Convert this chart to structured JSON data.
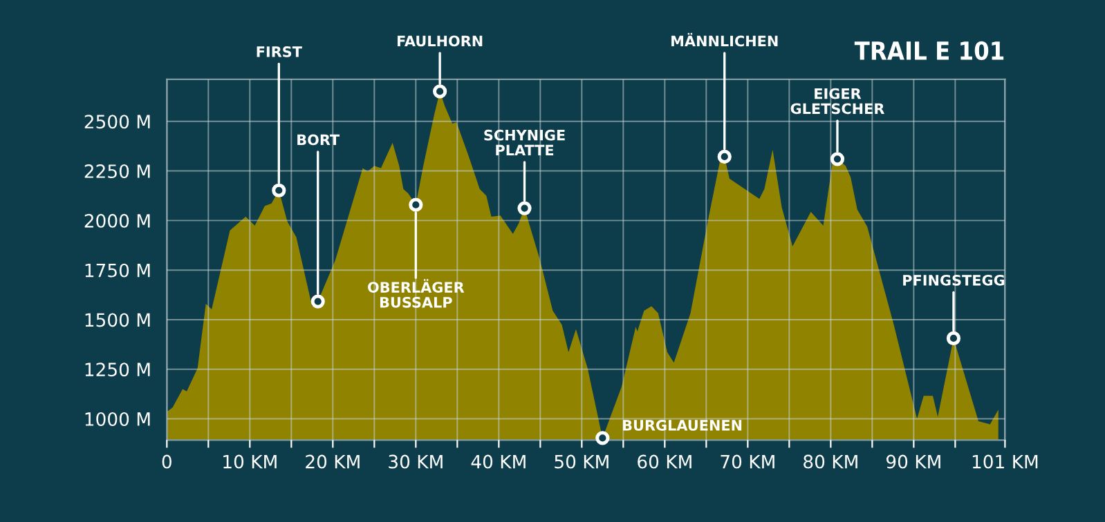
{
  "chart_data": {
    "type": "area",
    "title": "TRAIL E 101",
    "x": [
      0,
      0.7,
      1.9,
      2.4,
      3.7,
      4.7,
      5.4,
      7.6,
      9.5,
      10.6,
      11.8,
      12.6,
      13.5,
      14.5,
      15.6,
      17.5,
      18.2,
      20.3,
      23.6,
      24.2,
      25.0,
      25.8,
      27.2,
      28.0,
      28.5,
      29.1,
      30.0,
      30.9,
      32.2,
      32.9,
      33.5,
      34.4,
      34.9,
      36.3,
      37.7,
      38.5,
      39.1,
      40.2,
      41.7,
      42.4,
      43.1,
      44.9,
      46.5,
      47.6,
      48.4,
      49.3,
      50.7,
      52.5,
      54.8,
      56.5,
      56.7,
      57.5,
      58.4,
      59.2,
      60.3,
      61.1,
      63.1,
      65.3,
      66.7,
      67.2,
      67.8,
      71.4,
      72.0,
      73.0,
      74.1,
      75.4,
      77.6,
      79.1,
      80.2,
      80.8,
      81.8,
      82.4,
      83.2,
      84.4,
      87.6,
      90.4,
      91.2,
      92.3,
      92.9,
      94.8,
      97.8,
      99.2,
      100.2
    ],
    "series": [
      {
        "color": "#8f8300",
        "values": [
          1035,
          1058,
          1150,
          1139,
          1255,
          1580,
          1552,
          1950,
          2020,
          1974,
          2074,
          2086,
          2152,
          1997,
          1916,
          1568,
          1592,
          1800,
          2264,
          2248,
          2276,
          2264,
          2392,
          2276,
          2159,
          2136,
          2079,
          2276,
          2531,
          2651,
          2577,
          2489,
          2496,
          2333,
          2159,
          2125,
          2020,
          2025,
          1933,
          1986,
          2062,
          1811,
          1545,
          1475,
          1336,
          1452,
          1255,
          903,
          1162,
          1464,
          1441,
          1545,
          1568,
          1533,
          1336,
          1283,
          1533,
          2020,
          2310,
          2322,
          2211,
          2109,
          2159,
          2357,
          2067,
          1870,
          2044,
          1974,
          2287,
          2310,
          2276,
          2218,
          2055,
          1969,
          1475,
          1000,
          1116,
          1116,
          1011,
          1406,
          988,
          972,
          1046
        ]
      }
    ],
    "xlim": [
      0,
      101
    ],
    "ylim": [
      893,
      2712
    ],
    "xticks": [
      {
        "value": 0,
        "label": "0"
      },
      {
        "value": 5,
        "label": null
      },
      {
        "value": 10,
        "label": "10 KM"
      },
      {
        "value": 15,
        "label": null
      },
      {
        "value": 20,
        "label": "20 KM"
      },
      {
        "value": 25,
        "label": null
      },
      {
        "value": 30,
        "label": "30 KM"
      },
      {
        "value": 35,
        "label": null
      },
      {
        "value": 40,
        "label": "40 KM"
      },
      {
        "value": 45,
        "label": null
      },
      {
        "value": 50,
        "label": "50 KM"
      },
      {
        "value": 55,
        "label": null
      },
      {
        "value": 60,
        "label": "60 KM"
      },
      {
        "value": 65,
        "label": null
      },
      {
        "value": 70,
        "label": "70 KM"
      },
      {
        "value": 75,
        "label": null
      },
      {
        "value": 80,
        "label": "80 KM"
      },
      {
        "value": 85,
        "label": null
      },
      {
        "value": 90,
        "label": "90 KM"
      },
      {
        "value": 95,
        "label": null
      },
      {
        "value": 101,
        "label": "101 KM"
      }
    ],
    "yticks": [
      {
        "value": 1000,
        "label": "1000 M"
      },
      {
        "value": 1250,
        "label": "1250 M"
      },
      {
        "value": 1500,
        "label": "1500 M"
      },
      {
        "value": 1750,
        "label": "1750 M"
      },
      {
        "value": 2000,
        "label": "2000 M"
      },
      {
        "value": 2250,
        "label": "2250 M"
      },
      {
        "value": 2500,
        "label": "2500 M"
      }
    ],
    "grid": true,
    "annotations": [
      {
        "text": "FIRST",
        "x": 13.5,
        "y": 2152
      },
      {
        "text": "BORT",
        "x": 18.2,
        "y": 1592
      },
      {
        "text": "OBERLÄGER\nBUSSALP",
        "x": 30.0,
        "y": 2079
      },
      {
        "text": "FAULHORN",
        "x": 32.9,
        "y": 2651
      },
      {
        "text": "SCHYNIGE\nPLATTE",
        "x": 43.1,
        "y": 2062
      },
      {
        "text": "BURGLAUENEN",
        "x": 52.5,
        "y": 903
      },
      {
        "text": "MÄNNLICHEN",
        "x": 67.2,
        "y": 2322
      },
      {
        "text": "EIGER\nGLETSCHER",
        "x": 80.8,
        "y": 2310
      },
      {
        "text": "PFINGSTEGG",
        "x": 94.8,
        "y": 1406
      }
    ]
  }
}
